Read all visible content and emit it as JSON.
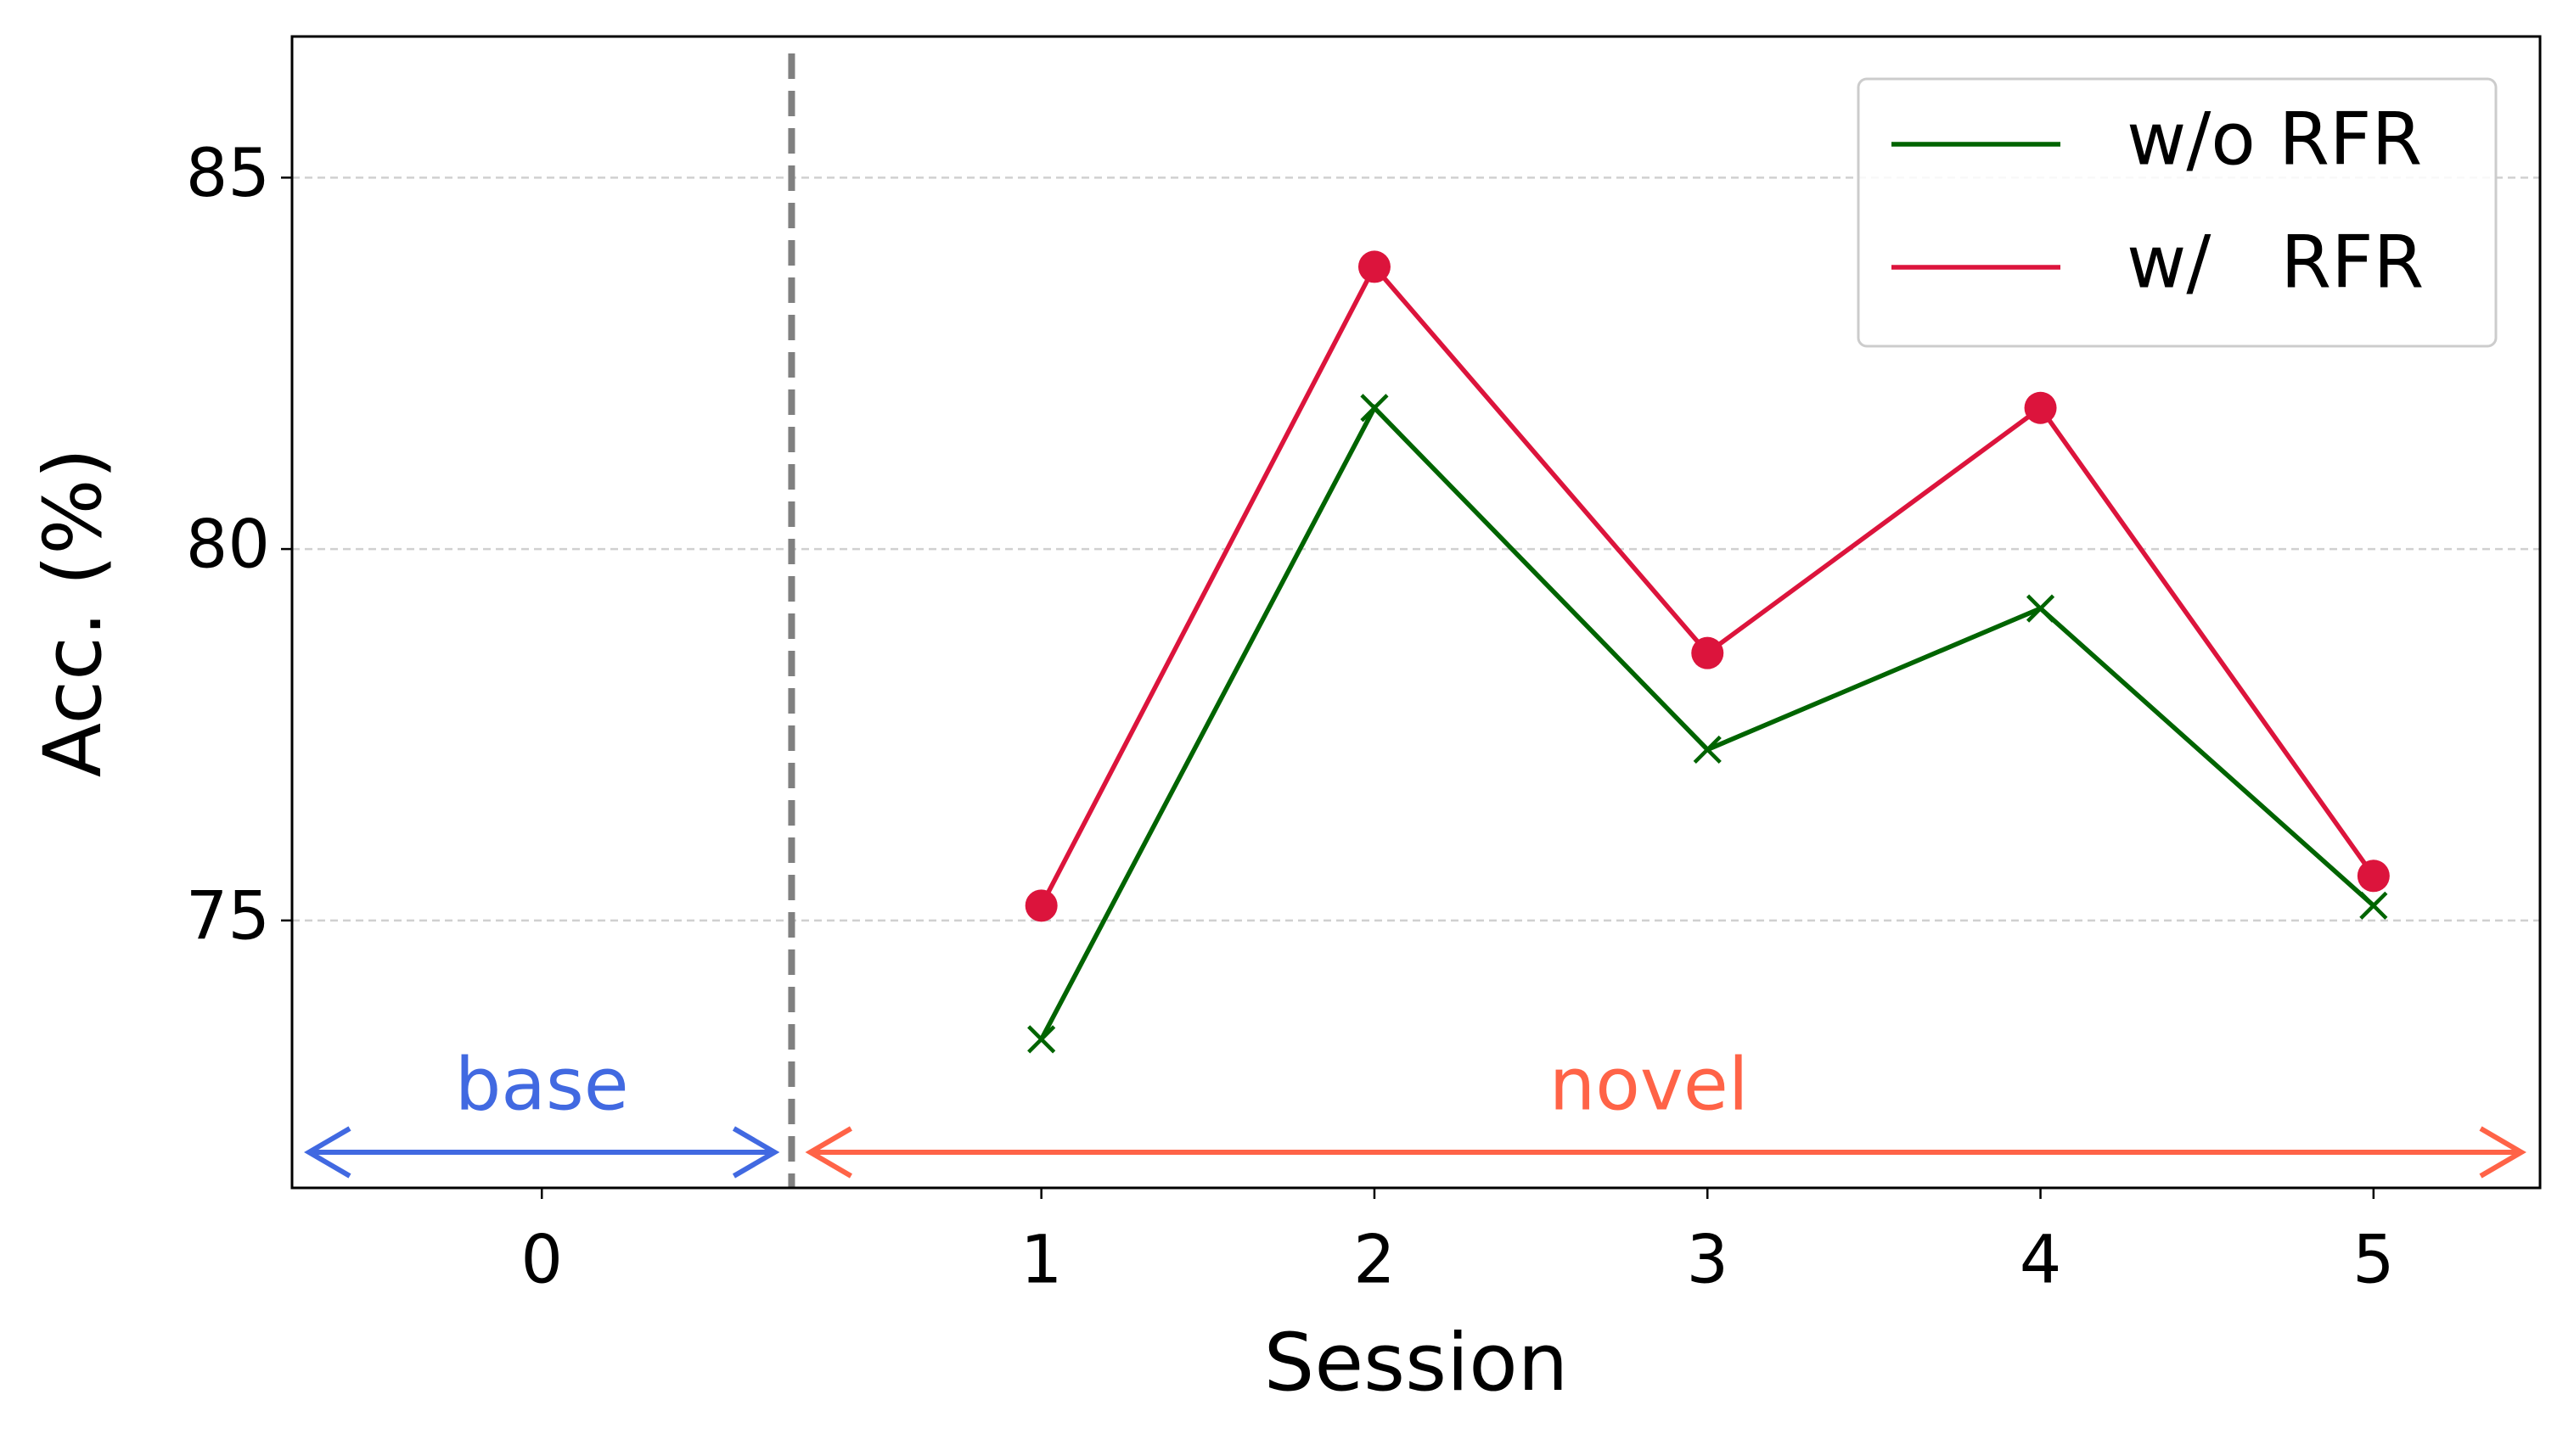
{
  "chart_data": {
    "type": "line",
    "xlabel": "Session",
    "ylabel": "Acc. (%)",
    "x": [
      1,
      2,
      3,
      4,
      5
    ],
    "series": [
      {
        "name": "w/o RFR",
        "color": "#006400",
        "marker": "x",
        "values": [
          73.4,
          81.9,
          77.3,
          79.2,
          75.2
        ]
      },
      {
        "name": "w/   RFR",
        "color": "#dc143c",
        "marker": "o",
        "values": [
          75.2,
          83.8,
          78.6,
          81.9,
          75.6
        ]
      }
    ],
    "xlim": [
      -1.25,
      5.5
    ],
    "xticks": [
      {
        "value": -0.5,
        "label": "0"
      },
      1,
      2,
      3,
      4,
      5
    ],
    "ylim": [
      71.4,
      86.9
    ],
    "yticks": [
      75,
      80,
      85
    ],
    "grid": true,
    "legend": "upper right",
    "annotations": [
      {
        "text": "base",
        "color": "#4169e1"
      },
      {
        "text": "novel",
        "color": "#ff6347"
      }
    ]
  }
}
